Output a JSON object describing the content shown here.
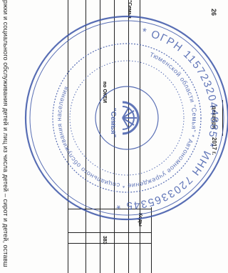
{
  "document": {
    "main_line": "ржки и социального обслуживания детей и лиц из числа детей – сирот и детей, оставш",
    "date_day": "26",
    "date_month": "декабря",
    "date_year": "2017 г.",
    "okei_label": "по ОКЕИ",
    "codes_label": "Коды",
    "code_383": "383",
    "org_fragment": "\"Семья"
  },
  "stamp": {
    "color": "#3b55a8",
    "outer_text": "* ОГРН 1157232044885 * ИНН 7203365345 *",
    "ring_text": "Тюменской области \"Семья\" * Автономное учреждение * социального обслуживания населения",
    "inner_text": "Центр социальной помощи семье и детям",
    "center_text": "\"Семья\""
  }
}
